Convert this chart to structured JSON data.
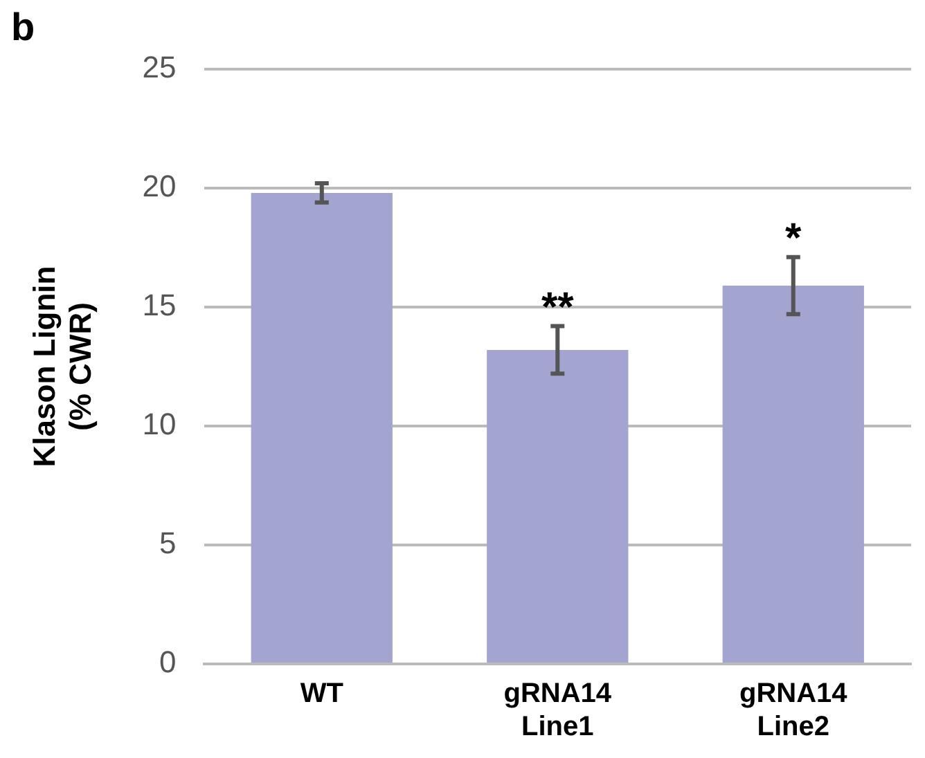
{
  "chart_data": {
    "type": "bar",
    "ylabel": "Klason Lignin\n(% CWR)",
    "categories": [
      "WT",
      "gRNA14\nLine1",
      "gRNA14\nLine2"
    ],
    "values": [
      19.8,
      13.2,
      15.9
    ],
    "color": "#a3a4cf",
    "errors": [
      0.4,
      1.0,
      1.2
    ],
    "ylim": [
      0,
      25
    ],
    "yticks": [
      0,
      5,
      10,
      15,
      20,
      25
    ],
    "grid": "y",
    "legend": false,
    "annotations": [
      "b",
      {
        "text": "**",
        "x": "gRNA14\nLine1",
        "y": 14.2
      },
      {
        "text": "*",
        "x": "gRNA14\nLine2",
        "y": 17.1
      }
    ]
  }
}
